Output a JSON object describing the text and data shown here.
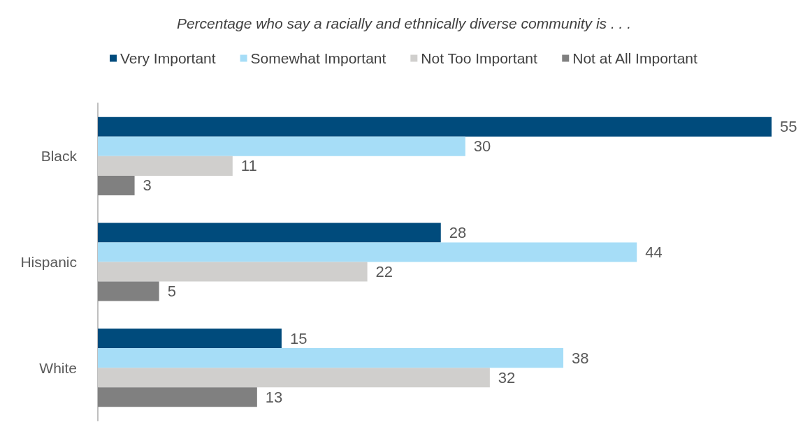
{
  "chart_data": {
    "type": "bar",
    "orientation": "horizontal",
    "title": "Percentage who say a racially and ethnically diverse community is . . .",
    "categories": [
      "Black",
      "Hispanic",
      "White"
    ],
    "series": [
      {
        "name": "Very Important",
        "color": "#004b7c",
        "values": [
          55,
          28,
          15
        ]
      },
      {
        "name": "Somewhat Important",
        "color": "#a6ddf7",
        "values": [
          30,
          44,
          38
        ]
      },
      {
        "name": "Not Too Important",
        "color": "#d0cfcd",
        "values": [
          11,
          22,
          32
        ]
      },
      {
        "name": "Not at All Important",
        "color": "#808080",
        "values": [
          3,
          5,
          13
        ]
      }
    ],
    "data_labels": true,
    "legend": "top",
    "grid": false
  }
}
